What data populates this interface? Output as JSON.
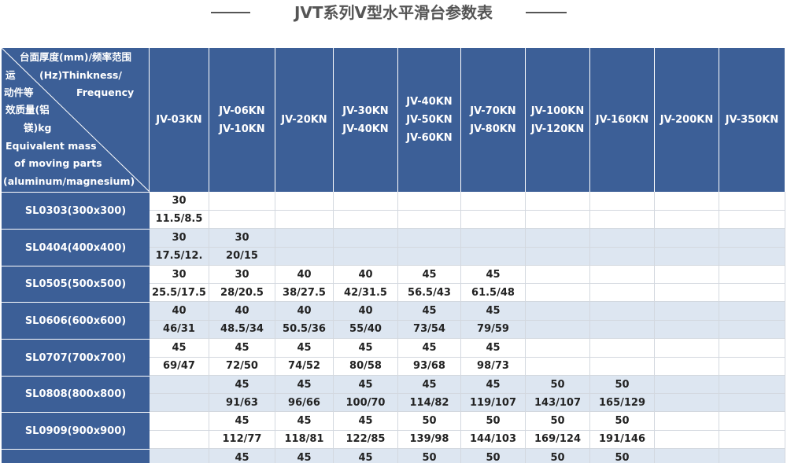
{
  "title": "JVT系列V型水平滑台参数表",
  "table": {
    "corner": [
      "台面厚度(mm)/频率范围",
      "运",
      "(Hz)Thinkness/",
      "动件等",
      "Frequency",
      "效质量(铝",
      "镁)kg",
      "Equivalent mass",
      "of moving parts",
      "(aluminum/magnesium)"
    ],
    "columns": [
      [
        "JV-03KN"
      ],
      [
        "JV-06KN",
        "JV-10KN"
      ],
      [
        "JV-20KN"
      ],
      [
        "JV-30KN",
        "JV-40KN"
      ],
      [
        "JV-40KN",
        "JV-50KN",
        "JV-60KN"
      ],
      [
        "JV-70KN",
        "JV-80KN"
      ],
      [
        "JV-100KN",
        "JV-120KN"
      ],
      [
        "JV-160KN"
      ],
      [
        "JV-200KN"
      ],
      [
        "JV-350KN"
      ]
    ],
    "rows": [
      {
        "label": "SL0303(300x300)",
        "top": [
          30
        ],
        "bottom": [
          "11.5/8.5"
        ]
      },
      {
        "label": "SL0404(400x400)",
        "top": [
          30,
          30
        ],
        "bottom": [
          "17.5/12.",
          "20/15"
        ]
      },
      {
        "label": "SL0505(500x500)",
        "top": [
          30,
          30,
          40,
          40,
          45,
          45
        ],
        "bottom": [
          "25.5/17.5",
          "28/20.5",
          "38/27.5",
          "42/31.5",
          "56.5/43",
          "61.5/48"
        ]
      },
      {
        "label": "SL0606(600x600)",
        "top": [
          40,
          40,
          40,
          40,
          45,
          45
        ],
        "bottom": [
          "46/31",
          "48.5/34",
          "50.5/36",
          "55/40",
          "73/54",
          "79/59"
        ]
      },
      {
        "label": "SL0707(700x700)",
        "top": [
          45,
          45,
          45,
          45,
          45,
          45
        ],
        "bottom": [
          "69/47",
          "72/50",
          "74/52",
          "80/58",
          "93/68",
          "98/73"
        ]
      },
      {
        "label": "SL0808(800x800)",
        "top": [
          null,
          45,
          45,
          45,
          45,
          45,
          50,
          50
        ],
        "bottom": [
          null,
          "91/63",
          "96/66",
          "100/70",
          "114/82",
          "119/107",
          "143/107",
          "165/129"
        ]
      },
      {
        "label": "SL0909(900x900)",
        "top": [
          null,
          45,
          45,
          45,
          50,
          50,
          50,
          50
        ],
        "bottom": [
          null,
          "112/77",
          "118/81",
          "122/85",
          "139/98",
          "144/103",
          "169/124",
          "191/146"
        ]
      },
      {
        "top": [
          null,
          45,
          45,
          45,
          50,
          50,
          50,
          50
        ]
      }
    ]
  }
}
